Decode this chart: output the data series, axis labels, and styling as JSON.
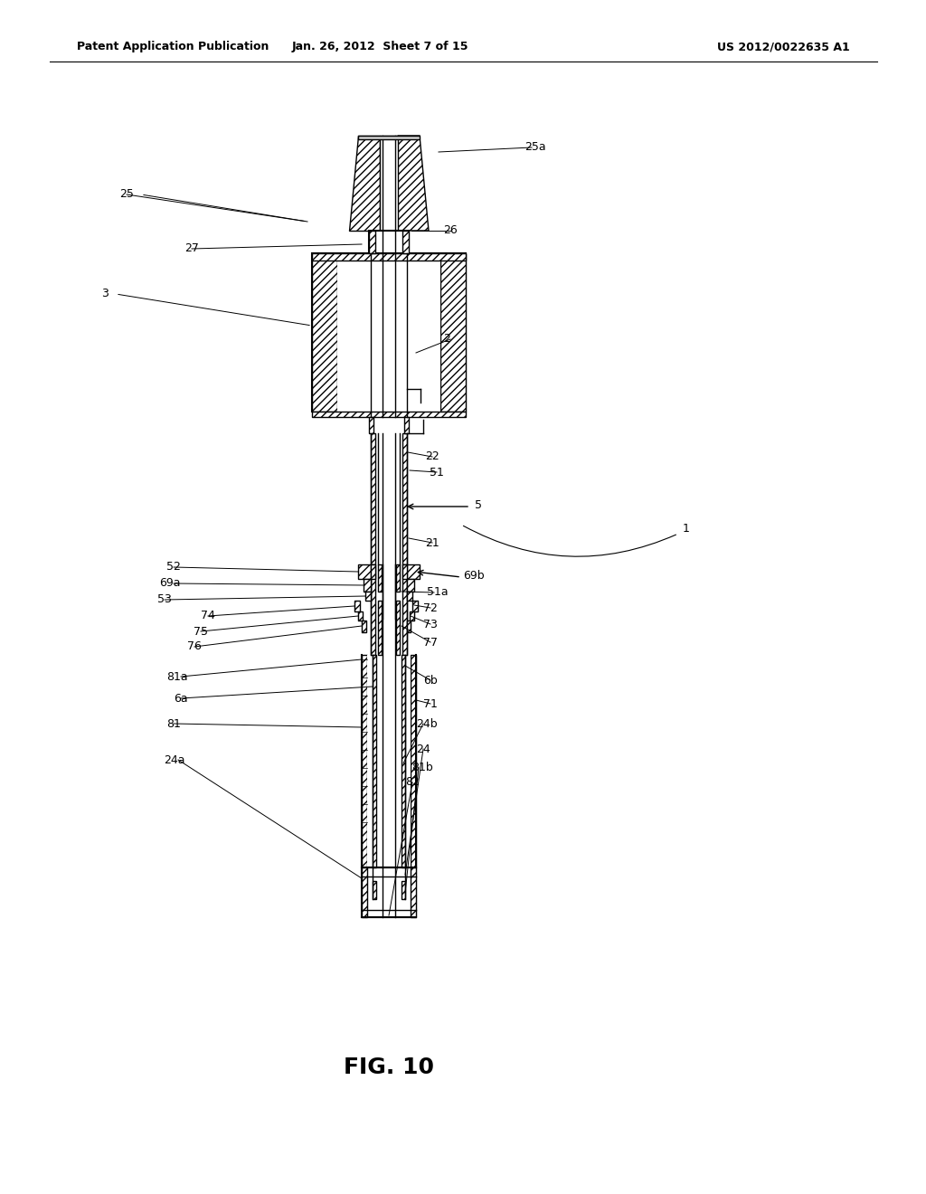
{
  "header_left": "Patent Application Publication",
  "header_mid": "Jan. 26, 2012  Sheet 7 of 15",
  "header_right": "US 2012/0022635 A1",
  "figure_label": "FIG. 10",
  "bg_color": "#ffffff",
  "line_color": "#000000"
}
